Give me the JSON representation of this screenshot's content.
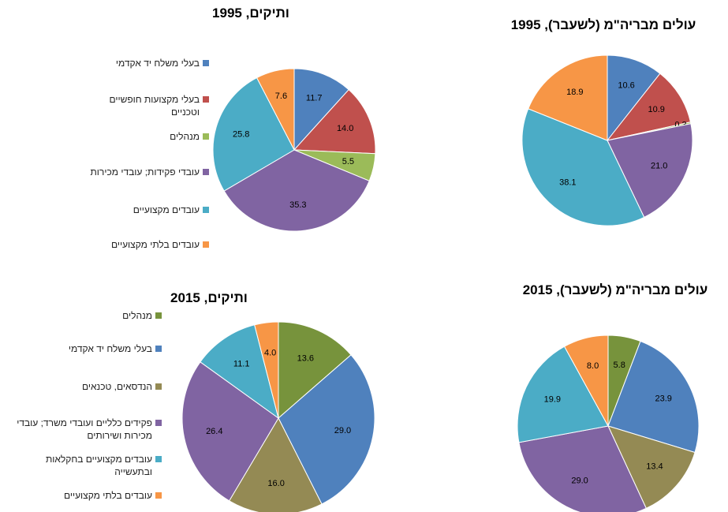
{
  "chart_data": [
    {
      "type": "pie",
      "title": "ותיקים, 1995",
      "categories": [
        "בעלי משלח יד אקדמי",
        "בעלי מקצועות חופשיים וטכניים",
        "מנהלים",
        "עובדי פקידות; עובדי מכירות",
        "עובדים מקצועיים",
        "עובדים בלתי מקצועיים"
      ],
      "values": [
        11.7,
        14.0,
        5.5,
        35.3,
        25.8,
        7.6
      ],
      "value_labels": [
        "11.7",
        "14.0",
        "5.5",
        "35.3",
        "25.8",
        "7.6"
      ],
      "colors": [
        "#4f81bd",
        "#c0504d",
        "#9bbb59",
        "#8064a2",
        "#4bacc6",
        "#f79646"
      ]
    },
    {
      "type": "pie",
      "title": "עולים מבריה\"מ (לשעבר), 1995",
      "values": [
        10.6,
        10.9,
        0.3,
        21.0,
        38.1,
        18.9
      ],
      "value_labels": [
        "10.6",
        "10.9",
        "0.3",
        "21.0",
        "38.1",
        "18.9"
      ],
      "colors": [
        "#4f81bd",
        "#c0504d",
        "#9bbb59",
        "#8064a2",
        "#4bacc6",
        "#f79646"
      ]
    },
    {
      "type": "pie",
      "title": "ותיקים, 2015",
      "categories": [
        "מנהלים",
        "בעלי משלח יד אקדמי",
        "הנדסאים, טכנאים",
        "פקידים כלליים ועובדי משרד; עובדי מכירות ושירותים",
        "עובדים מקצועיים בחקלאות ובתעשייה",
        "עובדים בלתי מקצועיים"
      ],
      "values": [
        13.6,
        29.0,
        16.0,
        26.4,
        11.1,
        4.0
      ],
      "value_labels": [
        "13.6",
        "29.0",
        "16.0",
        "26.4",
        "11.1",
        "4.0"
      ],
      "colors": [
        "#77933c",
        "#4f81bd",
        "#948a54",
        "#8064a2",
        "#4bacc6",
        "#f79646"
      ]
    },
    {
      "type": "pie",
      "title": "עולים מבריה\"מ (לשעבר), 2015",
      "values": [
        5.8,
        23.9,
        13.4,
        29.0,
        19.9,
        8.0
      ],
      "value_labels": [
        "5.8",
        "23.9",
        "13.4",
        "29.0",
        "19.9",
        "8.0"
      ],
      "colors": [
        "#77933c",
        "#4f81bd",
        "#948a54",
        "#8064a2",
        "#4bacc6",
        "#f79646"
      ]
    }
  ]
}
